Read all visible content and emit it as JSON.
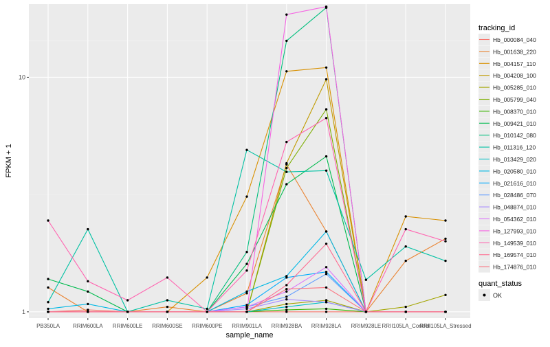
{
  "chart_data": {
    "type": "line",
    "xlabel": "sample_name",
    "ylabel": "FPKM + 1",
    "y_scale": "log10",
    "ylim": [
      0.94,
      20.5
    ],
    "y_ticks": [
      {
        "value": 1,
        "label": "1"
      },
      {
        "value": 10,
        "label": "10"
      }
    ],
    "grid": true,
    "background": "#ebebeb",
    "categories": [
      "PB350LA",
      "RRIM600LA",
      "RRIM600LE",
      "RRIM600SE",
      "RRIM600PE",
      "RRIM901LA",
      "RRIM928BA",
      "RRIM928LA",
      "RRIM928LE",
      "RRII105LA_Control",
      "RRII105LA_Stressed"
    ],
    "legend": {
      "title": "tracking_id",
      "position": "right"
    },
    "legend2": {
      "title": "quant_status",
      "label": "OK"
    },
    "series": [
      {
        "name": "Hb_000084_040",
        "color": "#F8766D",
        "values": [
          1.0,
          1.02,
          1.0,
          1.0,
          1.0,
          1.0,
          1.0,
          1.0,
          1.0,
          1.0,
          1.0
        ]
      },
      {
        "name": "Hb_001638_220",
        "color": "#EA8331",
        "values": [
          1.27,
          1.0,
          1.0,
          1.05,
          1.0,
          1.2,
          4.25,
          2.2,
          1.0,
          1.65,
          2.05
        ]
      },
      {
        "name": "Hb_004157_110",
        "color": "#D89000",
        "values": [
          1.0,
          1.0,
          1.0,
          1.0,
          1.4,
          3.1,
          10.6,
          11.0,
          1.0,
          2.55,
          2.45
        ]
      },
      {
        "name": "Hb_004208_100",
        "color": "#C09B00",
        "values": [
          1.0,
          1.0,
          1.0,
          1.0,
          1.0,
          1.0,
          4.3,
          9.8,
          1.0,
          1.0,
          1.0
        ]
      },
      {
        "name": "Hb_005285_010",
        "color": "#A3A500",
        "values": [
          1.0,
          1.0,
          1.0,
          1.0,
          1.0,
          1.0,
          1.08,
          1.12,
          1.0,
          1.05,
          1.18
        ]
      },
      {
        "name": "Hb_005799_040",
        "color": "#7CAE00",
        "values": [
          1.0,
          1.0,
          1.0,
          1.0,
          1.0,
          1.0,
          4.1,
          7.3,
          1.0,
          1.0,
          1.0
        ]
      },
      {
        "name": "Hb_008370_010",
        "color": "#39B600",
        "values": [
          1.0,
          1.0,
          1.0,
          1.0,
          1.0,
          1.0,
          1.02,
          1.03,
          1.0,
          1.0,
          1.0
        ]
      },
      {
        "name": "Hb_009421_010",
        "color": "#00BB4E",
        "values": [
          1.38,
          1.22,
          1.0,
          1.0,
          1.0,
          1.6,
          3.5,
          4.6,
          1.0,
          1.0,
          1.0
        ]
      },
      {
        "name": "Hb_010142_080",
        "color": "#00BF7D",
        "values": [
          1.0,
          1.0,
          1.0,
          1.0,
          1.0,
          1.8,
          14.3,
          19.8,
          1.0,
          1.0,
          1.0
        ]
      },
      {
        "name": "Hb_011316_120",
        "color": "#00C1A3",
        "values": [
          1.1,
          2.25,
          1.0,
          1.12,
          1.03,
          4.9,
          3.95,
          4.0,
          1.37,
          1.9,
          1.65
        ]
      },
      {
        "name": "Hb_013429_020",
        "color": "#00BFC4",
        "values": [
          1.0,
          1.0,
          1.0,
          1.0,
          1.0,
          1.0,
          1.05,
          1.1,
          1.0,
          1.0,
          1.0
        ]
      },
      {
        "name": "Hb_020580_010",
        "color": "#00B8E5",
        "values": [
          1.03,
          1.08,
          1.0,
          1.0,
          1.0,
          1.22,
          1.42,
          2.2,
          1.0,
          1.0,
          1.0
        ]
      },
      {
        "name": "Hb_021616_010",
        "color": "#00ABFD",
        "values": [
          1.0,
          1.0,
          1.0,
          1.0,
          1.0,
          1.07,
          1.4,
          1.48,
          1.0,
          1.0,
          1.0
        ]
      },
      {
        "name": "Hb_028486_070",
        "color": "#619CFF",
        "values": [
          1.0,
          1.0,
          1.0,
          1.0,
          1.0,
          1.05,
          1.16,
          1.45,
          1.0,
          1.0,
          1.0
        ]
      },
      {
        "name": "Hb_048874_010",
        "color": "#A58AFF",
        "values": [
          1.0,
          1.0,
          1.0,
          1.0,
          1.0,
          1.03,
          1.13,
          1.1,
          1.0,
          1.0,
          1.0
        ]
      },
      {
        "name": "Hb_054362_010",
        "color": "#DB72FB",
        "values": [
          1.0,
          1.0,
          1.0,
          1.0,
          1.0,
          1.05,
          1.22,
          1.55,
          1.0,
          1.0,
          1.0
        ]
      },
      {
        "name": "Hb_127993_010",
        "color": "#F564E3",
        "values": [
          1.0,
          1.0,
          1.0,
          1.0,
          1.0,
          1.0,
          18.5,
          20.0,
          1.0,
          1.0,
          1.0
        ]
      },
      {
        "name": "Hb_149539_010",
        "color": "#FF64B0",
        "values": [
          2.45,
          1.35,
          1.12,
          1.4,
          1.0,
          1.5,
          5.3,
          6.7,
          1.0,
          2.25,
          2.0
        ]
      },
      {
        "name": "Hb_169574_010",
        "color": "#FF6C91",
        "values": [
          1.0,
          1.0,
          1.0,
          1.0,
          1.0,
          1.0,
          1.3,
          1.95,
          1.0,
          1.0,
          1.0
        ]
      },
      {
        "name": "Hb_174876_010",
        "color": "#FB727F",
        "values": [
          1.0,
          1.0,
          1.0,
          1.0,
          1.0,
          1.0,
          1.25,
          1.27,
          1.0,
          1.0,
          1.0
        ]
      }
    ]
  }
}
